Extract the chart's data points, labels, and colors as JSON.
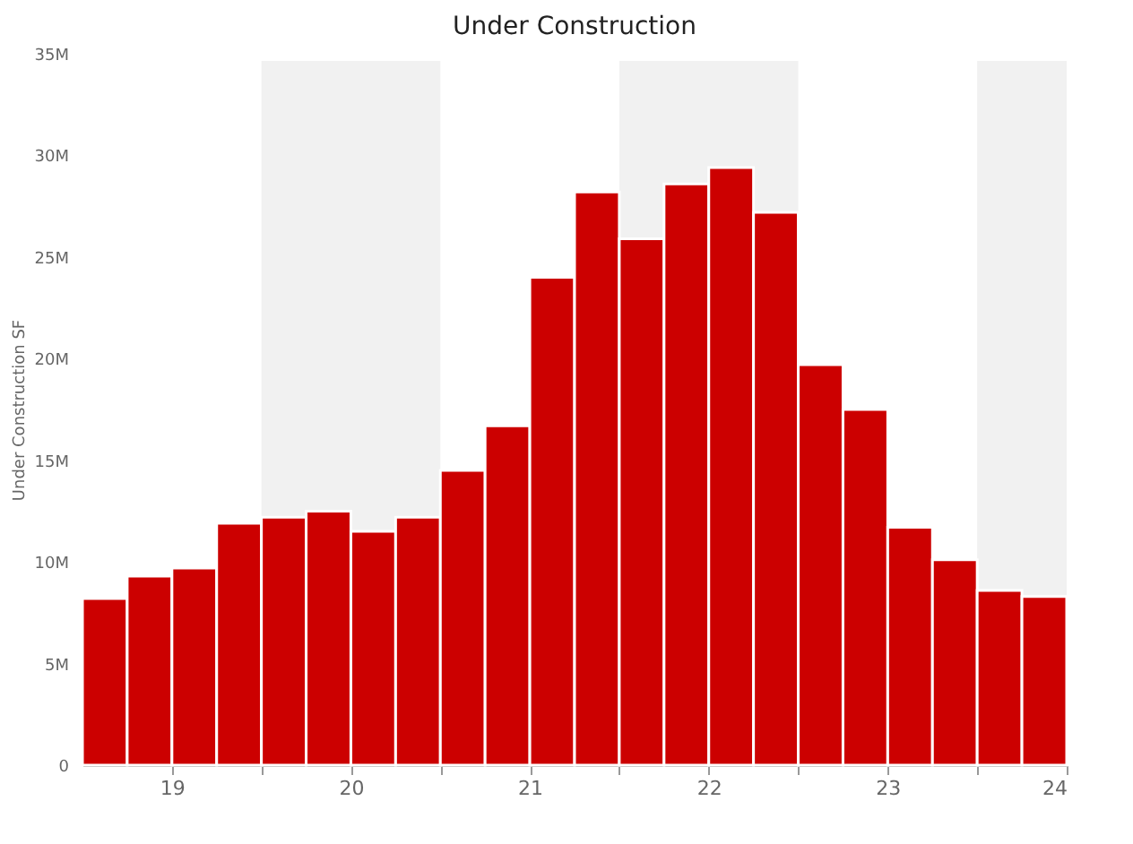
{
  "chart_data": {
    "type": "bar",
    "title": "Under Construction",
    "ylabel": "Under Construction SF",
    "x": [
      18.625,
      18.875,
      19.125,
      19.375,
      19.625,
      19.875,
      20.125,
      20.375,
      20.625,
      20.875,
      21.125,
      21.375,
      21.625,
      21.875,
      22.125,
      22.375,
      22.625,
      22.875,
      23.125,
      23.375,
      23.625,
      23.875
    ],
    "values": [
      8200000,
      9300000,
      9700000,
      11900000,
      12200000,
      12500000,
      11500000,
      12200000,
      14500000,
      16700000,
      24000000,
      28200000,
      25900000,
      28600000,
      29400000,
      27200000,
      19700000,
      17500000,
      11700000,
      10100000,
      8600000,
      8300000
    ],
    "color": "#cc0000",
    "xlim": [
      18.5,
      24
    ],
    "xticks": [
      19,
      {
        "value": 19.5,
        "label": null
      },
      20,
      {
        "value": 20.5,
        "label": null
      },
      21,
      {
        "value": 21.5,
        "label": null
      },
      22,
      {
        "value": 22.5,
        "label": null
      },
      23,
      {
        "value": 23.5,
        "label": null
      },
      24
    ],
    "ylim": [
      0,
      35000000
    ],
    "yticks": [
      0,
      {
        "value": 5000000,
        "label": "5M"
      },
      {
        "value": 10000000,
        "label": "10M"
      },
      {
        "value": 15000000,
        "label": "15M"
      },
      {
        "value": 20000000,
        "label": "20M"
      },
      {
        "value": 25000000,
        "label": "25M"
      },
      {
        "value": 30000000,
        "label": "30M"
      },
      {
        "value": 35000000,
        "label": "35M"
      }
    ],
    "bands": [
      {
        "axis": "x",
        "from": 19.5,
        "to": 20.5,
        "color": "#f1f1f1"
      },
      {
        "axis": "x",
        "from": 21.5,
        "to": 22.5,
        "color": "#f1f1f1"
      },
      {
        "axis": "x",
        "from": 23.5,
        "to": 24,
        "color": "#f1f1f1"
      }
    ],
    "tick_labels": true
  }
}
